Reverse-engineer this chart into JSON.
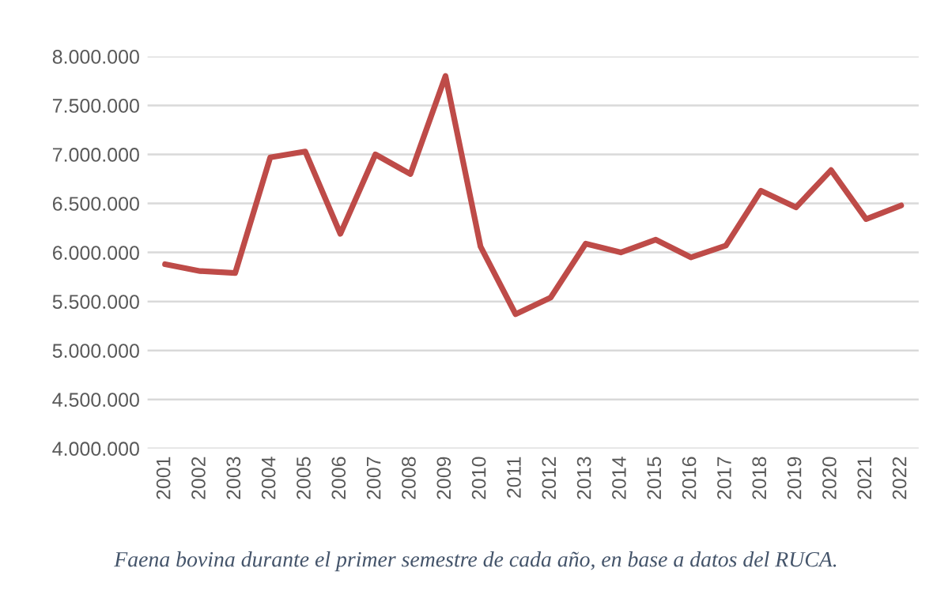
{
  "chart_data": {
    "type": "line",
    "categories": [
      "2001",
      "2002",
      "2003",
      "2004",
      "2005",
      "2006",
      "2007",
      "2008",
      "2009",
      "2010",
      "2011",
      "2012",
      "2013",
      "2014",
      "2015",
      "2016",
      "2017",
      "2018",
      "2019",
      "2020",
      "2021",
      "2022"
    ],
    "series": [
      {
        "color": "#be4b48",
        "values": [
          5880000,
          5810000,
          5790000,
          6970000,
          7030000,
          6190000,
          7000000,
          6800000,
          7800000,
          6060000,
          5370000,
          5540000,
          6090000,
          6000000,
          6130000,
          5950000,
          6070000,
          6630000,
          6460000,
          6840000,
          6340000,
          6480000
        ]
      }
    ],
    "ylim": [
      4000000,
      8000000
    ],
    "yticks": [
      {
        "value": 4000000,
        "label": "4.000.000"
      },
      {
        "value": 4500000,
        "label": "4.500.000"
      },
      {
        "value": 5000000,
        "label": "5.000.000"
      },
      {
        "value": 5500000,
        "label": "5.500.000"
      },
      {
        "value": 6000000,
        "label": "6.000.000"
      },
      {
        "value": 6500000,
        "label": "6.500.000"
      },
      {
        "value": 7000000,
        "label": "7.000.000"
      },
      {
        "value": 7500000,
        "label": "7.500.000"
      },
      {
        "value": 8000000,
        "label": "8.000.000"
      }
    ],
    "grid": "y",
    "annotations": [
      "Faena bovina durante el primer semestre de cada año, en base a datos del RUCA."
    ]
  }
}
